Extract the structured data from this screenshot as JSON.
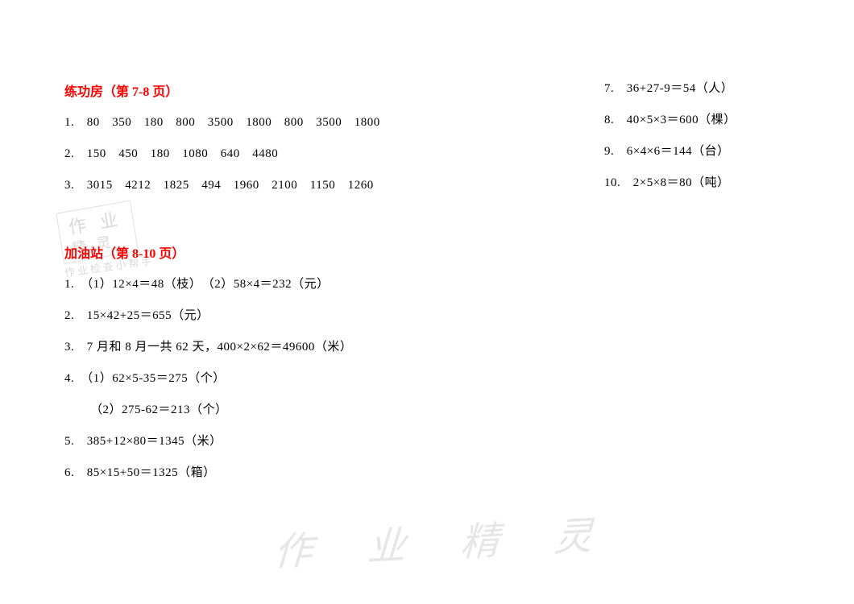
{
  "watermark1": {
    "line1": "作 业",
    "line2": "精 灵",
    "line3": "作业检查小帮手"
  },
  "watermark2": "作 业 精 灵",
  "section1": {
    "title": "练功房（第 7-8 页）",
    "lines": [
      "1.　80　350　180　800　3500　1800　800　3500　1800",
      "2.　150　450　180　1080　640　4480",
      "3.　3015　4212　1825　494　1960　2100　1150　1260"
    ]
  },
  "right_col": [
    "7.　36+27-9＝54（人）",
    "8.　40×5×3＝600（棵）",
    "9.　6×4×6＝144（台）",
    "10.　2×5×8＝80（吨）"
  ],
  "section2": {
    "title": "加油站（第 8-10 页）",
    "lines": [
      "1.　（1）12×4＝48（枝）　（2）58×4＝232（元）",
      "2.　15×42+25＝655（元）",
      "3.　7 月和 8 月一共 62 天，400×2×62＝49600（米）",
      "4.　（1）62×5-35＝275（个）",
      "",
      "5.　385+12×80＝1345（米）",
      "6.　85×15+50＝1325（箱）"
    ],
    "line4b": "（2）275-62＝213（个）"
  }
}
